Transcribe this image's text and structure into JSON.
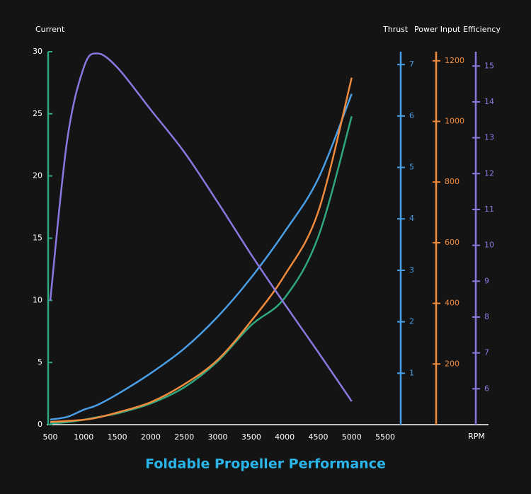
{
  "chart_data": {
    "type": "line",
    "title": "Foldable Propeller Performance",
    "x_label": "RPM",
    "x": [
      500,
      750,
      1000,
      1200,
      1500,
      2000,
      2500,
      3000,
      3500,
      4000,
      4500,
      5000
    ],
    "xlim": [
      500,
      7000
    ],
    "xticks": [
      500,
      1000,
      1500,
      2000,
      2500,
      3000,
      3500,
      4000,
      4500,
      5000,
      5500
    ],
    "y_axes": [
      {
        "label": "Current",
        "color": "#2fa77f",
        "ylim": [
          0,
          30
        ],
        "yticks": [
          0,
          5,
          10,
          15,
          20,
          25,
          30
        ]
      },
      {
        "label": "Thrust",
        "color": "#4a9ee6",
        "ylim": [
          0,
          7.25
        ],
        "yticks": [
          1,
          2,
          3,
          4,
          5,
          6,
          7
        ]
      },
      {
        "label": "Power Input",
        "color": "#f08a3c",
        "ylim": [
          0,
          1230
        ],
        "yticks": [
          200,
          400,
          600,
          800,
          1000,
          1200
        ]
      },
      {
        "label": "Efficiency",
        "color": "#8a78e0",
        "ylim": [
          5,
          15.4
        ],
        "yticks": [
          6,
          7,
          8,
          9,
          10,
          11,
          12,
          13,
          14,
          15
        ]
      }
    ],
    "series": [
      {
        "name": "Current",
        "axis": 0,
        "color": "#2fa77f",
        "values": [
          0.1,
          0.2,
          0.4,
          0.6,
          0.9,
          1.7,
          3.0,
          5.1,
          8.0,
          10.2,
          15.1,
          24.8
        ]
      },
      {
        "name": "Thrust",
        "axis": 1,
        "color": "#4a9ee6",
        "values": [
          0.1,
          0.15,
          0.29,
          0.38,
          0.59,
          1.0,
          1.48,
          2.1,
          2.86,
          3.75,
          4.78,
          6.43
        ]
      },
      {
        "name": "Power Input",
        "axis": 2,
        "color": "#f08a3c",
        "values": [
          9,
          12,
          16,
          23,
          40,
          74,
          133,
          214,
          342,
          493,
          702,
          1144
        ]
      },
      {
        "name": "Efficiency",
        "axis": 3,
        "color": "#8a78e0",
        "values": [
          8.46,
          12.9,
          14.96,
          15.35,
          14.96,
          13.78,
          12.6,
          11.2,
          9.74,
          8.36,
          7.02,
          5.65
        ]
      }
    ]
  }
}
